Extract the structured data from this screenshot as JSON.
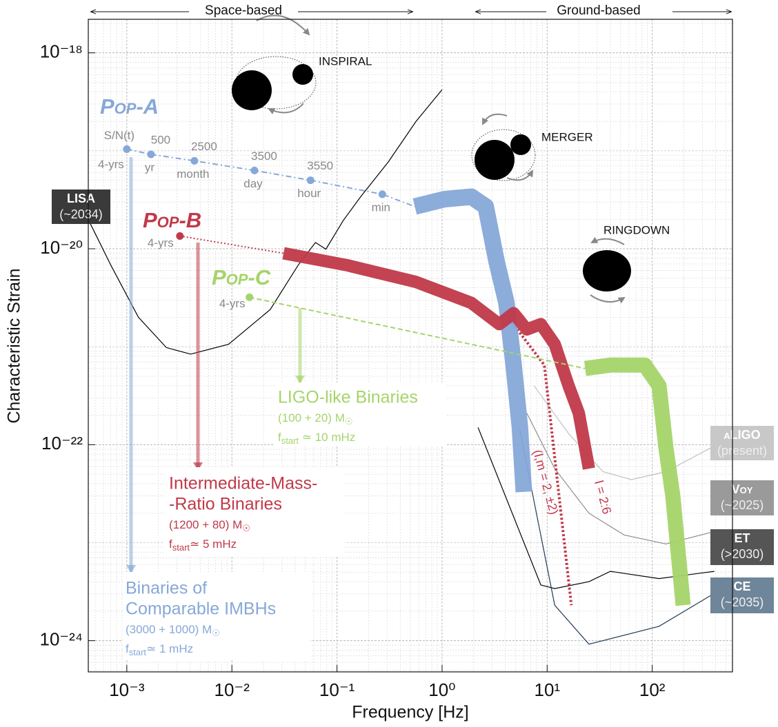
{
  "chart_data": {
    "type": "line",
    "xlabel": "Frequency [Hz]",
    "ylabel": "Characteristic Strain",
    "log_x": true,
    "log_y": true,
    "grid": true,
    "minor_grid": true,
    "xlim": [
      0.00043,
      580
    ],
    "ylim": [
      4.8e-25,
      2.2e-18
    ],
    "xticks": [
      {
        "value": 0.001,
        "label": "10⁻³"
      },
      {
        "value": 0.01,
        "label": "10⁻²"
      },
      {
        "value": 0.1,
        "label": "10⁻¹"
      },
      {
        "value": 1,
        "label": "10⁰"
      },
      {
        "value": 10,
        "label": "10¹"
      },
      {
        "value": 100,
        "label": "10²"
      }
    ],
    "yticks": [
      {
        "value": 1e-18,
        "label": "10⁻¹⁸"
      },
      {
        "value": 1e-20,
        "label": "10⁻²⁰"
      },
      {
        "value": 1e-22,
        "label": "10⁻²²"
      },
      {
        "value": 1e-24,
        "label": "10⁻²⁴"
      }
    ],
    "regions": [
      "Space-based",
      "Ground-based"
    ],
    "phases": [
      "INSPIRAL",
      "MERGER",
      "RINGDOWN"
    ],
    "detectors": [
      {
        "name": "LISA",
        "period": "(~2034)",
        "color": "#000000",
        "box_color": "#3a3a3a",
        "x": [
          0.000434,
          0.000705,
          0.00129,
          0.00238,
          0.00405,
          0.0093,
          0.0232,
          0.0427,
          0.0624,
          0.0784,
          0.115,
          0.168,
          0.308,
          0.565,
          1.0
        ],
        "values": [
          1.95e-20,
          6.8e-21,
          2e-21,
          9.8e-22,
          8.4e-22,
          1.06e-21,
          2.4e-21,
          6.8e-21,
          1.16e-20,
          9.9e-21,
          1.95e-20,
          3.4e-20,
          7.7e-20,
          2e-19,
          4.2e-19
        ]
      },
      {
        "name": "aLIGO",
        "period": "(present)",
        "color": "#c0c0c0",
        "box_color": "#c8c8c8",
        "x": [
          7.5,
          16,
          34,
          63,
          135,
          390
        ],
        "values": [
          4e-22,
          1.3e-22,
          5.3e-23,
          4.4e-23,
          5.3e-23,
          9.7e-23
        ]
      },
      {
        "name": "Voy",
        "period": "(~2025)",
        "color": "#8c8c8c",
        "box_color": "#9a9a9a",
        "x": [
          6.4,
          11.8,
          25,
          54,
          135,
          390
        ],
        "values": [
          2.1e-22,
          5.7e-23,
          2e-23,
          1.2e-23,
          9.7e-24,
          1.3e-23
        ]
      },
      {
        "name": "ET",
        "period": "(>2030)",
        "color": "#000000",
        "box_color": "#555555",
        "x": [
          2.2,
          8.7,
          11.8,
          25,
          40,
          116,
          390
        ],
        "values": [
          1.5e-22,
          3.7e-24,
          3.4e-24,
          4e-24,
          5.1e-24,
          4.3e-24,
          5.1e-24
        ]
      },
      {
        "name": "CE",
        "period": "(~2035)",
        "color": "#1f3a55",
        "box_color": "#6f8599",
        "x": [
          5.5,
          11.8,
          25,
          116,
          530
        ],
        "values": [
          1.4e-22,
          2.3e-24,
          9.2e-25,
          1.4e-24,
          3.7e-24
        ]
      }
    ],
    "populations": [
      {
        "name": "Pop-A",
        "color": "#86a8d8",
        "x": [
          0.001,
          0.0017,
          0.0044,
          0.0164,
          0.056,
          0.27
        ],
        "values": [
          1.04e-19,
          9.2e-20,
          7.9e-20,
          6.3e-20,
          5e-20,
          3.6e-20
        ],
        "time_labels": [
          "4-yrs",
          "yr",
          "month",
          "day",
          "hour",
          "min"
        ],
        "snr_label": "S/N(t)",
        "snr": [
          null,
          500,
          2500,
          3500,
          3550,
          null
        ],
        "waveform_x": [
          0.55,
          1.04,
          1.9,
          2.6,
          3.3,
          4.1,
          4.8,
          5.5,
          6.0
        ],
        "waveform_values": [
          2.7e-20,
          3.2e-20,
          3.4e-20,
          2.7e-20,
          7.4e-21,
          2.8e-21,
          6.5e-22,
          1.5e-22,
          3.3e-23
        ],
        "title": [
          "Binaries of",
          "Comparable IMBHs"
        ],
        "mass": [
          "(3000 + 1000) M",
          "☉"
        ],
        "freq": [
          "f",
          "start",
          "≃ 1 mHz"
        ]
      },
      {
        "name": "Pop-B",
        "color": "#c0394a",
        "x": [
          0.0032
        ],
        "values": [
          1.35e-20
        ],
        "time_labels": [
          "4-yrs"
        ],
        "waveform_x": [
          0.031,
          0.124,
          0.56,
          1.9,
          3.5,
          4.8,
          6.4,
          8.7,
          11.8,
          16,
          20,
          25
        ],
        "waveform_values": [
          9e-21,
          6.8e-21,
          4.6e-21,
          2.8e-21,
          1.7e-21,
          2.2e-21,
          1.5e-21,
          1.7e-21,
          1.06e-21,
          4e-22,
          2.1e-22,
          5.7e-23
        ],
        "title": [
          "Intermediate-Mass-",
          "-Ratio Binaries"
        ],
        "mass": [
          "(1200 + 80) M",
          "☉"
        ],
        "freq": [
          "f",
          "start",
          "≃ 5 mHz"
        ]
      },
      {
        "name": "Pop-C",
        "color": "#a5d46a",
        "x": [
          0.0147
        ],
        "values": [
          3.2e-21
        ],
        "time_labels": [
          "4-yrs"
        ],
        "waveform_x": [
          23,
          40,
          85,
          116,
          135,
          157,
          197
        ],
        "waveform_values": [
          6e-22,
          6.5e-22,
          6.5e-22,
          4e-22,
          9.3e-23,
          3e-23,
          2.3e-24
        ],
        "title": [
          "LIGO-like Binaries"
        ],
        "mass": [
          "(100 + 20) M",
          "☉"
        ],
        "freq": [
          "f",
          "start",
          " ≃ 10 mHz"
        ]
      }
    ],
    "modes": {
      "label": "(l,m = 2, ±2)",
      "color": "#c0394a",
      "x": [
        4.4,
        9.4,
        17
      ],
      "values": [
        1.9e-21,
        6.5e-22,
        2.3e-24
      ]
    },
    "harmonics_label": "l = 2:6"
  }
}
